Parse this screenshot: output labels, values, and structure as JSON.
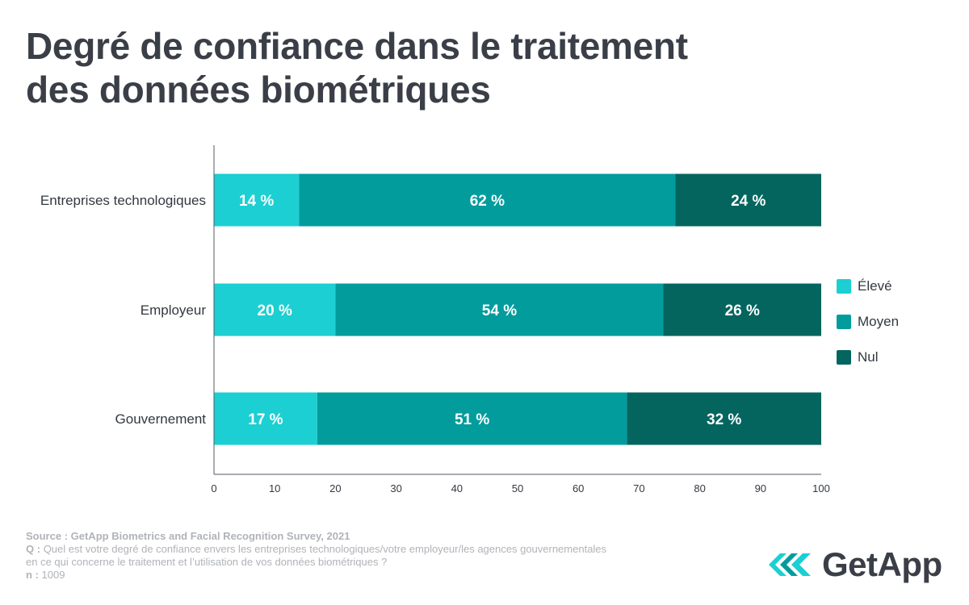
{
  "title_lines": [
    "Degré de confiance dans le traitement",
    "des données biométriques"
  ],
  "chart_data": {
    "type": "bar",
    "orientation": "horizontal",
    "stacked": true,
    "categories": [
      "Entreprises technologiques",
      "Employeur",
      "Gouvernement"
    ],
    "series": [
      {
        "name": "Élevé",
        "color": "#1ccfd2",
        "values": [
          14,
          20,
          17
        ],
        "labels": [
          "14 %",
          "20 %",
          "17 %"
        ]
      },
      {
        "name": "Moyen",
        "color": "#039c9d",
        "values": [
          62,
          54,
          51
        ],
        "labels": [
          "62 %",
          "54 %",
          "51 %"
        ]
      },
      {
        "name": "Nul",
        "color": "#04655f",
        "values": [
          24,
          26,
          32
        ],
        "labels": [
          "24 %",
          "26 %",
          "32 %"
        ]
      }
    ],
    "xlim": [
      0,
      100
    ],
    "xticks": [
      "0",
      "10",
      "20",
      "30",
      "40",
      "50",
      "60",
      "70",
      "80",
      "90",
      "100"
    ],
    "legend_position": "right"
  },
  "footer": {
    "source_label": "Source :",
    "source_text": "GetApp Biometrics and Facial Recognition Survey, 2021",
    "q_label": "Q :",
    "q_text": "Quel est votre degré de confiance envers les entreprises technologiques/votre employeur/les agences gouvernementales",
    "q_text_2": "en ce qui concerne le traitement et l’utilisation de vos données biométriques ?",
    "n_label": "n :",
    "n_text": "1009"
  },
  "logo": {
    "text": "GetApp",
    "colors": [
      "#1ccfd2",
      "#039c9d"
    ]
  }
}
